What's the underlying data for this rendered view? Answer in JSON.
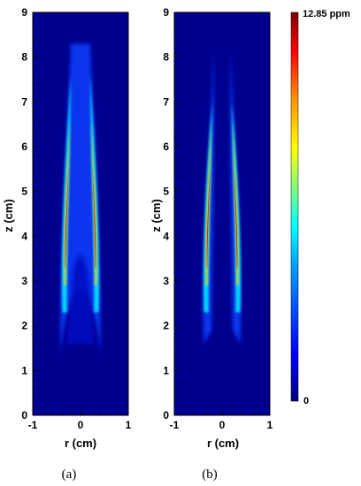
{
  "chart_data": [
    {
      "type": "heatmap",
      "panel_label": "(a)",
      "xlabel": "r (cm)",
      "ylabel": "z (cm)",
      "xlim": [
        -1,
        1
      ],
      "ylim": [
        0,
        9
      ],
      "xticks": [
        "-1",
        "0",
        "1"
      ],
      "yticks": [
        "0",
        "1",
        "2",
        "3",
        "4",
        "5",
        "6",
        "7",
        "8",
        "9"
      ],
      "description_values": {
        "plume_tip_z": 8.3,
        "plume_bottom_z": 1.4,
        "inner_gap_top_z": 3.4,
        "peak_z": 4.6,
        "peak_r": [
          -0.3,
          0.3
        ]
      }
    },
    {
      "type": "heatmap",
      "panel_label": "(b)",
      "xlabel": "r (cm)",
      "ylabel": "z (cm)",
      "xlim": [
        -1,
        1
      ],
      "ylim": [
        0,
        9
      ],
      "xticks": [
        "-1",
        "0",
        "1"
      ],
      "yticks": [
        "0",
        "1",
        "2",
        "3",
        "4",
        "5",
        "6",
        "7",
        "8",
        "9"
      ],
      "description_values": {
        "plume_tip_z": 8.2,
        "plume_bottom_z": 1.6,
        "peak_z": 4.6,
        "peak_r": [
          -0.3,
          0.3
        ]
      }
    }
  ],
  "colorbar": {
    "max_label": "12.85 ppm",
    "min_label": "0",
    "colors": [
      "#00007f",
      "#0000ff",
      "#007fff",
      "#00ffff",
      "#7fff7f",
      "#ffff00",
      "#ff7f00",
      "#ff0000",
      "#7f0000"
    ]
  }
}
